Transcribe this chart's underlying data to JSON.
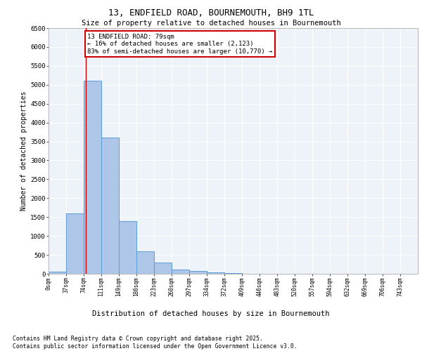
{
  "title_line1": "13, ENDFIELD ROAD, BOURNEMOUTH, BH9 1TL",
  "title_line2": "Size of property relative to detached houses in Bournemouth",
  "xlabel": "Distribution of detached houses by size in Bournemouth",
  "ylabel": "Number of detached properties",
  "footnote": "Contains HM Land Registry data © Crown copyright and database right 2025.\nContains public sector information licensed under the Open Government Licence v3.0.",
  "bar_labels": [
    "0sqm",
    "37sqm",
    "74sqm",
    "111sqm",
    "149sqm",
    "186sqm",
    "223sqm",
    "260sqm",
    "297sqm",
    "334sqm",
    "372sqm",
    "409sqm",
    "446sqm",
    "483sqm",
    "520sqm",
    "557sqm",
    "594sqm",
    "632sqm",
    "669sqm",
    "706sqm",
    "743sqm"
  ],
  "bar_values": [
    50,
    1600,
    5100,
    3600,
    1400,
    600,
    300,
    120,
    80,
    30,
    10,
    5,
    3,
    2,
    2,
    1,
    1,
    0,
    0,
    0,
    0
  ],
  "bar_color": "#aec6e8",
  "bar_edge_color": "#5b9bd5",
  "annotation_text": "13 ENDFIELD ROAD: 79sqm\n← 16% of detached houses are smaller (2,123)\n83% of semi-detached houses are larger (10,770) →",
  "vline_color": "#cc0000",
  "annotation_box_edgecolor": "#cc0000",
  "ylim": [
    0,
    6500
  ],
  "bin_width": 37,
  "background_color": "#eef2f9",
  "grid_color": "#ffffff"
}
